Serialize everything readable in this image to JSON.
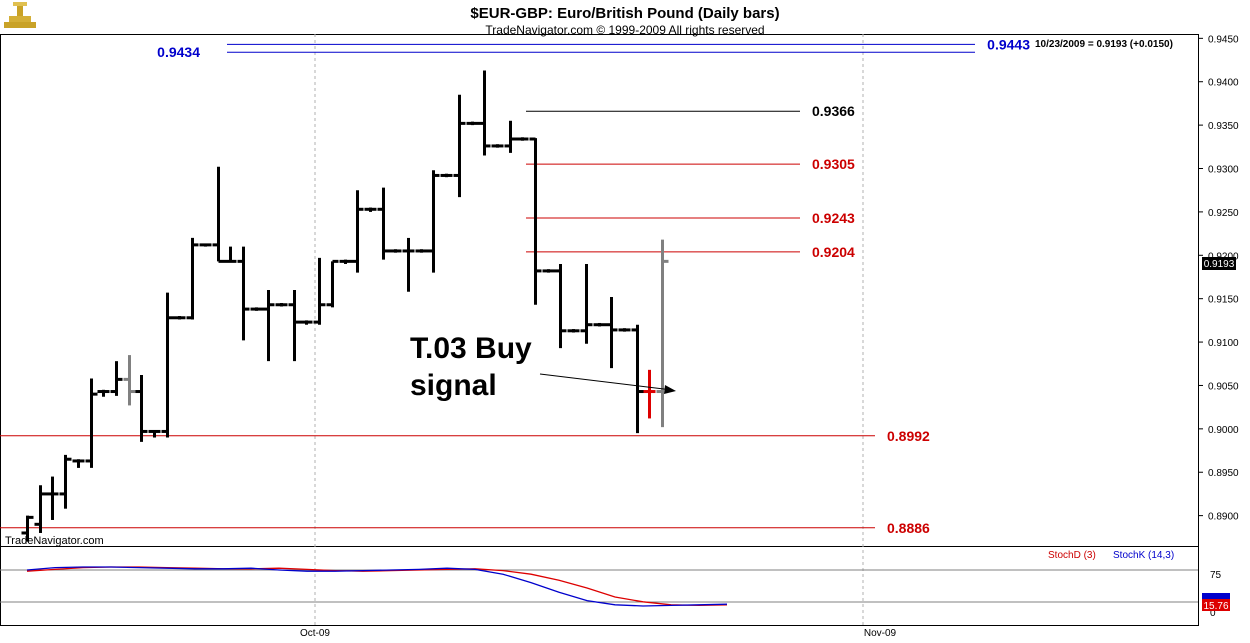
{
  "header": {
    "title": "$EUR-GBP:  Euro/British Pound  (Daily bars)",
    "copyright": "TradeNavigator.com © 1999-2009 All rights reserved",
    "quote": "10/23/2009 = 0.9193 (+0.0150)",
    "watermark": "TradeNavigator.com"
  },
  "annotation": {
    "line1": "T.03 Buy",
    "line2": "signal"
  },
  "levels": [
    {
      "label": "0.9434",
      "value": 0.9434,
      "color": "#0000cc"
    },
    {
      "label": "0.9443",
      "value": 0.9443,
      "color": "#0000cc"
    },
    {
      "label": "0.9366",
      "value": 0.9366,
      "color": "#000000"
    },
    {
      "label": "0.9305",
      "value": 0.9305,
      "color": "#cc0000"
    },
    {
      "label": "0.9243",
      "value": 0.9243,
      "color": "#cc0000"
    },
    {
      "label": "0.9204",
      "value": 0.9204,
      "color": "#cc0000"
    },
    {
      "label": "0.8992",
      "value": 0.8992,
      "color": "#cc0000"
    },
    {
      "label": "0.8886",
      "value": 0.8886,
      "color": "#cc0000"
    }
  ],
  "last_price_label": "0.9193",
  "stoch_labels": {
    "d": "StochD (3)",
    "k": "StochK (14,3)",
    "value": "15.76",
    "tick75": "75",
    "tick0": "0"
  },
  "colors": {
    "stoch_d": "#dd0000",
    "stoch_k": "#0000cc",
    "bar": "#000000",
    "bar_gray": "#808080",
    "bar_red": "#dd0000"
  },
  "chart_data": {
    "type": "ohlc",
    "ylim": [
      0.8865,
      0.9455
    ],
    "y_ticks": [
      "0.9450",
      "0.9400",
      "0.9350",
      "0.9300",
      "0.9250",
      "0.9200",
      "0.9150",
      "0.9100",
      "0.9050",
      "0.9000",
      "0.8950",
      "0.8900"
    ],
    "x_ticks": [
      "Oct-09",
      "Nov-09"
    ],
    "bars": [
      {
        "o": 0.888,
        "h": 0.89,
        "l": 0.887,
        "c": 0.8898,
        "color": "black"
      },
      {
        "o": 0.889,
        "h": 0.8935,
        "l": 0.888,
        "c": 0.8925,
        "color": "black"
      },
      {
        "o": 0.8925,
        "h": 0.8945,
        "l": 0.8895,
        "c": 0.8925,
        "color": "black"
      },
      {
        "o": 0.8925,
        "h": 0.897,
        "l": 0.8908,
        "c": 0.8965,
        "color": "black"
      },
      {
        "o": 0.8963,
        "h": 0.8965,
        "l": 0.8955,
        "c": 0.8963,
        "color": "black"
      },
      {
        "o": 0.8963,
        "h": 0.9058,
        "l": 0.8955,
        "c": 0.904,
        "color": "black"
      },
      {
        "o": 0.9043,
        "h": 0.9045,
        "l": 0.9037,
        "c": 0.9043,
        "color": "black"
      },
      {
        "o": 0.9043,
        "h": 0.9078,
        "l": 0.9038,
        "c": 0.9057,
        "color": "black"
      },
      {
        "o": 0.9057,
        "h": 0.9085,
        "l": 0.9027,
        "c": 0.9043,
        "color": "gray"
      },
      {
        "o": 0.9043,
        "h": 0.9062,
        "l": 0.8985,
        "c": 0.8997,
        "color": "black"
      },
      {
        "o": 0.8997,
        "h": 0.8998,
        "l": 0.899,
        "c": 0.8997,
        "color": "black"
      },
      {
        "o": 0.8997,
        "h": 0.9157,
        "l": 0.899,
        "c": 0.9128,
        "color": "black"
      },
      {
        "o": 0.9128,
        "h": 0.913,
        "l": 0.9126,
        "c": 0.9128,
        "color": "black"
      },
      {
        "o": 0.9128,
        "h": 0.922,
        "l": 0.9126,
        "c": 0.9212,
        "color": "black"
      },
      {
        "o": 0.9212,
        "h": 0.9213,
        "l": 0.921,
        "c": 0.9212,
        "color": "black"
      },
      {
        "o": 0.9212,
        "h": 0.9302,
        "l": 0.9193,
        "c": 0.9193,
        "color": "black"
      },
      {
        "o": 0.9193,
        "h": 0.921,
        "l": 0.9192,
        "c": 0.9193,
        "color": "black"
      },
      {
        "o": 0.9193,
        "h": 0.921,
        "l": 0.9102,
        "c": 0.9138,
        "color": "black"
      },
      {
        "o": 0.9138,
        "h": 0.914,
        "l": 0.9136,
        "c": 0.9138,
        "color": "black"
      },
      {
        "o": 0.9138,
        "h": 0.916,
        "l": 0.9078,
        "c": 0.9143,
        "color": "black"
      },
      {
        "o": 0.9143,
        "h": 0.9145,
        "l": 0.9141,
        "c": 0.9143,
        "color": "black"
      },
      {
        "o": 0.9143,
        "h": 0.916,
        "l": 0.9078,
        "c": 0.9123,
        "color": "black"
      },
      {
        "o": 0.9123,
        "h": 0.9125,
        "l": 0.912,
        "c": 0.9123,
        "color": "black"
      },
      {
        "o": 0.9123,
        "h": 0.9197,
        "l": 0.912,
        "c": 0.9143,
        "color": "black"
      },
      {
        "o": 0.9143,
        "h": 0.9193,
        "l": 0.914,
        "c": 0.9193,
        "color": "black"
      },
      {
        "o": 0.9193,
        "h": 0.9195,
        "l": 0.919,
        "c": 0.9193,
        "color": "black"
      },
      {
        "o": 0.9193,
        "h": 0.9275,
        "l": 0.918,
        "c": 0.9253,
        "color": "black"
      },
      {
        "o": 0.9253,
        "h": 0.9255,
        "l": 0.925,
        "c": 0.9253,
        "color": "black"
      },
      {
        "o": 0.9253,
        "h": 0.9278,
        "l": 0.9195,
        "c": 0.9205,
        "color": "black"
      },
      {
        "o": 0.9205,
        "h": 0.9207,
        "l": 0.9203,
        "c": 0.9205,
        "color": "black"
      },
      {
        "o": 0.9205,
        "h": 0.922,
        "l": 0.9158,
        "c": 0.9205,
        "color": "black"
      },
      {
        "o": 0.9205,
        "h": 0.9207,
        "l": 0.9203,
        "c": 0.9205,
        "color": "black"
      },
      {
        "o": 0.9205,
        "h": 0.9298,
        "l": 0.918,
        "c": 0.9292,
        "color": "black"
      },
      {
        "o": 0.9292,
        "h": 0.9294,
        "l": 0.929,
        "c": 0.9292,
        "color": "black"
      },
      {
        "o": 0.9292,
        "h": 0.9385,
        "l": 0.9267,
        "c": 0.9352,
        "color": "black"
      },
      {
        "o": 0.9352,
        "h": 0.9354,
        "l": 0.935,
        "c": 0.9352,
        "color": "black"
      },
      {
        "o": 0.9352,
        "h": 0.9413,
        "l": 0.9315,
        "c": 0.9326,
        "color": "black"
      },
      {
        "o": 0.9326,
        "h": 0.9328,
        "l": 0.9324,
        "c": 0.9326,
        "color": "black"
      },
      {
        "o": 0.9326,
        "h": 0.9355,
        "l": 0.9318,
        "c": 0.9334,
        "color": "black"
      },
      {
        "o": 0.9334,
        "h": 0.9336,
        "l": 0.9332,
        "c": 0.9334,
        "color": "black"
      },
      {
        "o": 0.9334,
        "h": 0.9335,
        "l": 0.9143,
        "c": 0.9182,
        "color": "black"
      },
      {
        "o": 0.9182,
        "h": 0.9184,
        "l": 0.918,
        "c": 0.9182,
        "color": "black"
      },
      {
        "o": 0.9182,
        "h": 0.919,
        "l": 0.9093,
        "c": 0.9113,
        "color": "black"
      },
      {
        "o": 0.9113,
        "h": 0.9115,
        "l": 0.9111,
        "c": 0.9113,
        "color": "black"
      },
      {
        "o": 0.9113,
        "h": 0.919,
        "l": 0.9098,
        "c": 0.912,
        "color": "black"
      },
      {
        "o": 0.912,
        "h": 0.9122,
        "l": 0.9118,
        "c": 0.912,
        "color": "black"
      },
      {
        "o": 0.912,
        "h": 0.9152,
        "l": 0.907,
        "c": 0.9114,
        "color": "black"
      },
      {
        "o": 0.9114,
        "h": 0.9116,
        "l": 0.9112,
        "c": 0.9114,
        "color": "black"
      },
      {
        "o": 0.9114,
        "h": 0.912,
        "l": 0.8995,
        "c": 0.9043,
        "color": "black"
      },
      {
        "o": 0.9043,
        "h": 0.9068,
        "l": 0.9012,
        "c": 0.9043,
        "color": "red"
      },
      {
        "o": 0.9043,
        "h": 0.9218,
        "l": 0.9002,
        "c": 0.9193,
        "color": "gray"
      }
    ],
    "stochastic": {
      "stoch_d": [
        73,
        76,
        79,
        80,
        80,
        79,
        78,
        77,
        77,
        78,
        76,
        74,
        73,
        74,
        75,
        76,
        77,
        74,
        68,
        58,
        45,
        30,
        22,
        17,
        16,
        17
      ],
      "stoch_k": [
        75,
        79,
        80,
        80,
        79,
        78,
        77,
        77,
        78,
        75,
        73,
        73,
        74,
        75,
        76,
        78,
        76,
        68,
        54,
        38,
        24,
        17,
        15,
        16,
        17,
        18
      ],
      "ylim": [
        0,
        100
      ]
    }
  }
}
